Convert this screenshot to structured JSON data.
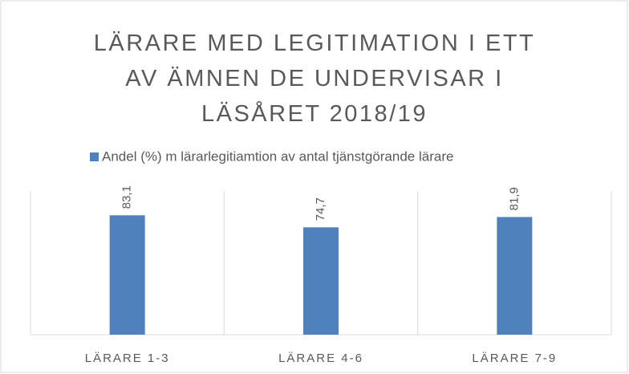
{
  "chart_data": {
    "type": "bar",
    "title": "LÄRARE MED LEGITIMATION I ETT AV ÄMNEN DE UNDERVISAR I LÄSÅRET 2018/19",
    "categories": [
      "LÄRARE 1-3",
      "LÄRARE 4-6",
      "LÄRARE 7-9"
    ],
    "series": [
      {
        "name": "Andel (%) m lärarlegitiamtion  av antal tjänstgörande lärare",
        "color": "#4f81bd",
        "values": [
          83.1,
          74.7,
          81.9
        ],
        "value_labels": [
          "83,1",
          "74,7",
          "81,9"
        ]
      }
    ],
    "ylim": [
      0,
      100
    ],
    "legend": "top"
  }
}
